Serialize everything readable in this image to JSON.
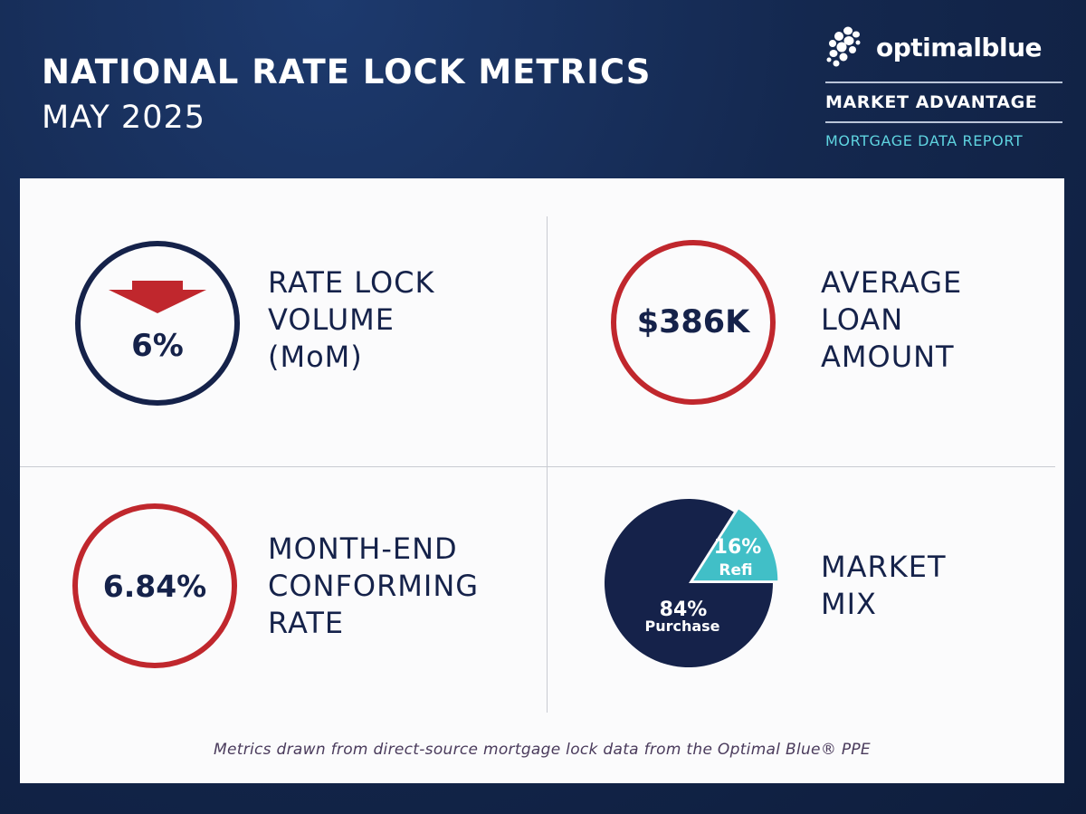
{
  "header": {
    "title": "NATIONAL RATE LOCK METRICS",
    "subtitle": "MAY 2025"
  },
  "brand": {
    "name": "optimalblue",
    "line1": "MARKET ADVANTAGE",
    "line2": "MORTGAGE DATA REPORT",
    "accent_color": "#5fd4e0"
  },
  "colors": {
    "navy": "#15224a",
    "red": "#c0272d",
    "teal": "#41bfc7"
  },
  "metrics": {
    "volume": {
      "direction_icon": "arrow-down-icon",
      "value": "6%",
      "label_lines": [
        "RATE LOCK",
        "VOLUME",
        "(MoM)"
      ]
    },
    "loan": {
      "value": "$386K",
      "label_lines": [
        "AVERAGE",
        "LOAN",
        "AMOUNT"
      ]
    },
    "rate": {
      "value": "6.84%",
      "label_lines": [
        "MONTH-END",
        "CONFORMING",
        "RATE"
      ]
    },
    "mix": {
      "label_lines": [
        "MARKET",
        "MIX"
      ]
    }
  },
  "chart_data": {
    "type": "pie",
    "title": "MARKET MIX",
    "slices": [
      {
        "name": "Purchase",
        "value": 84,
        "display": "84%",
        "color": "#15224a"
      },
      {
        "name": "Refi",
        "value": 16,
        "display": "16%",
        "color": "#41bfc7"
      }
    ]
  },
  "footnote": "Metrics drawn from direct-source mortgage lock data from the Optimal Blue® PPE"
}
